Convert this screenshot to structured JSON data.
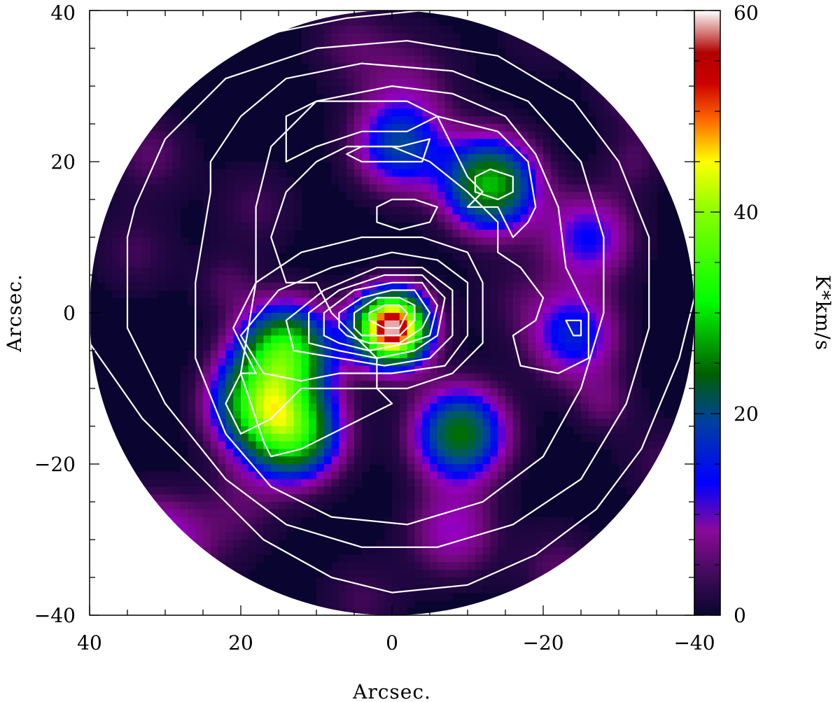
{
  "chart_data": {
    "type": "heatmap",
    "title": "",
    "xlabel": "Arcsec.",
    "ylabel": "Arcsec.",
    "xlim": [
      40,
      -40
    ],
    "ylim": [
      -40,
      40
    ],
    "x_ticks": [
      40,
      20,
      0,
      -20,
      -40
    ],
    "y_ticks": [
      40,
      20,
      0,
      -20,
      -40
    ],
    "x_tick_labels": [
      "40",
      "20",
      "0",
      "−20",
      "−40"
    ],
    "y_tick_labels": [
      "40",
      "20",
      "0",
      "−20",
      "−40"
    ],
    "colorbar": {
      "label": "K*km/s",
      "range": [
        0,
        60
      ],
      "ticks": [
        0,
        20,
        40,
        60
      ],
      "tick_labels": [
        "0",
        "20",
        "40",
        "60"
      ],
      "colors": [
        "#0a0530",
        "#3a0a55",
        "#8a0a9a",
        "#0000ff",
        "#00ff00",
        "#ffff00",
        "#cc0000",
        "#ffffff"
      ]
    },
    "map_radius": 40,
    "peaks": [
      {
        "x": 0,
        "y": -2,
        "value": 60
      },
      {
        "x": 14,
        "y": -5,
        "value": 32
      },
      {
        "x": 13,
        "y": -16,
        "value": 30
      },
      {
        "x": 18,
        "y": -12,
        "value": 26
      },
      {
        "x": -13,
        "y": 17,
        "value": 28
      },
      {
        "x": -9,
        "y": -16,
        "value": 24
      },
      {
        "x": -1,
        "y": 22,
        "value": 16
      },
      {
        "x": -24,
        "y": -3,
        "value": 14
      },
      {
        "x": -26,
        "y": 10,
        "value": 12
      },
      {
        "x": -34,
        "y": 31,
        "value": 10
      },
      {
        "x": 32,
        "y": -30,
        "value": 9
      },
      {
        "x": -8,
        "y": -29,
        "value": 9
      }
    ],
    "contours": [
      {
        "level": 1,
        "points": [
          [
            40,
            -4
          ],
          [
            33,
            -14
          ],
          [
            25,
            -22
          ],
          [
            17,
            -30
          ],
          [
            8,
            -35
          ],
          [
            0,
            -37
          ],
          [
            -10,
            -36
          ],
          [
            -19,
            -32
          ],
          [
            -27,
            -26
          ],
          [
            -33,
            -18
          ],
          [
            -38,
            -6
          ],
          [
            -40,
            2
          ],
          [
            -40,
            10
          ],
          [
            -37,
            22
          ],
          [
            -32,
            30
          ],
          [
            -24,
            36
          ],
          [
            -14,
            39
          ],
          [
            -4,
            40
          ],
          [
            6,
            39
          ],
          [
            16,
            37
          ],
          [
            26,
            32
          ],
          [
            34,
            23
          ],
          [
            38,
            14
          ],
          [
            40,
            8
          ]
        ]
      },
      {
        "level": 2,
        "points": [
          [
            35,
            10
          ],
          [
            35,
            -2
          ],
          [
            30,
            -12
          ],
          [
            22,
            -22
          ],
          [
            14,
            -28
          ],
          [
            4,
            -31
          ],
          [
            -6,
            -31
          ],
          [
            -16,
            -28
          ],
          [
            -25,
            -22
          ],
          [
            -31,
            -12
          ],
          [
            -34,
            -2
          ],
          [
            -34,
            10
          ],
          [
            -30,
            20
          ],
          [
            -24,
            28
          ],
          [
            -14,
            34
          ],
          [
            -2,
            36
          ],
          [
            10,
            35
          ],
          [
            22,
            31
          ],
          [
            30,
            23
          ],
          [
            34,
            14
          ]
        ]
      },
      {
        "level": 3,
        "points": [
          [
            24,
            16
          ],
          [
            26,
            4
          ],
          [
            26,
            -6
          ],
          [
            22,
            -16
          ],
          [
            16,
            -23
          ],
          [
            8,
            -27
          ],
          [
            -2,
            -28
          ],
          [
            -12,
            -25
          ],
          [
            -20,
            -19
          ],
          [
            -25,
            -10
          ],
          [
            -28,
            0
          ],
          [
            -28,
            10
          ],
          [
            -25,
            20
          ],
          [
            -18,
            28
          ],
          [
            -8,
            32
          ],
          [
            4,
            33
          ],
          [
            14,
            31
          ],
          [
            20,
            26
          ],
          [
            24,
            20
          ]
        ]
      },
      {
        "level": 4,
        "points": [
          [
            17,
            -17
          ],
          [
            20,
            -8
          ],
          [
            18,
            4
          ],
          [
            18,
            14
          ],
          [
            16,
            22
          ],
          [
            10,
            28
          ],
          [
            0,
            30
          ],
          [
            -8,
            29
          ],
          [
            -15,
            26
          ],
          [
            -19,
            21
          ],
          [
            -22,
            14
          ],
          [
            -23,
            6
          ],
          [
            -26,
            0
          ],
          [
            -26,
            -6
          ],
          [
            -22,
            -8
          ],
          [
            -17,
            -7
          ],
          [
            -16,
            -3
          ],
          [
            -19,
            -1
          ],
          [
            -20,
            2
          ],
          [
            -17,
            6
          ],
          [
            -14,
            8
          ],
          [
            -14,
            12
          ],
          [
            -10,
            16
          ],
          [
            -5,
            20
          ],
          [
            0,
            22
          ],
          [
            6,
            22
          ],
          [
            10,
            20
          ],
          [
            14,
            16
          ],
          [
            16,
            10
          ],
          [
            14,
            4
          ],
          [
            10,
            4
          ],
          [
            8,
            0
          ],
          [
            6,
            -2
          ],
          [
            2,
            -6
          ],
          [
            2,
            -10
          ],
          [
            0,
            -12
          ],
          [
            4,
            -14
          ],
          [
            8,
            -16
          ],
          [
            12,
            -18
          ],
          [
            16,
            -19
          ]
        ]
      },
      {
        "level": 5,
        "points": [
          [
            14,
            20
          ],
          [
            14,
            26
          ],
          [
            10,
            28
          ],
          [
            4,
            28
          ],
          [
            -2,
            28
          ],
          [
            -6,
            26
          ],
          [
            -8,
            22
          ],
          [
            -10,
            18
          ],
          [
            -12,
            16
          ],
          [
            -10,
            14
          ],
          [
            -14,
            14
          ],
          [
            -16,
            10
          ],
          [
            -18,
            12
          ],
          [
            -19,
            14
          ],
          [
            -18,
            20
          ],
          [
            -14,
            24
          ],
          [
            -6,
            26
          ],
          [
            -2,
            24
          ],
          [
            4,
            24
          ],
          [
            10,
            22
          ],
          [
            14,
            20
          ]
        ]
      },
      {
        "level": 6,
        "points": [
          [
            6,
            21
          ],
          [
            4,
            22
          ],
          [
            2,
            22
          ],
          [
            -1,
            22
          ],
          [
            -5,
            23
          ],
          [
            -4,
            20
          ],
          [
            0,
            20
          ],
          [
            4,
            20
          ],
          [
            6,
            21
          ]
        ]
      },
      {
        "level": 6,
        "points": [
          [
            -13,
            19
          ],
          [
            -16,
            18
          ],
          [
            -16,
            16
          ],
          [
            -14,
            15
          ],
          [
            -11,
            16
          ],
          [
            -11,
            18
          ],
          [
            -13,
            19
          ]
        ]
      },
      {
        "level": 6,
        "points": [
          [
            2,
            14
          ],
          [
            0,
            15
          ],
          [
            -3,
            15
          ],
          [
            -6,
            14
          ],
          [
            -5,
            12
          ],
          [
            -1,
            11
          ],
          [
            2,
            12
          ],
          [
            2,
            14
          ]
        ]
      },
      {
        "level": 6,
        "points": [
          [
            -23,
            -1
          ],
          [
            -25,
            -1
          ],
          [
            -25,
            -3
          ],
          [
            -24,
            -3
          ],
          [
            -23,
            -1
          ]
        ]
      },
      {
        "level": 7,
        "points": [
          [
            18,
            -8
          ],
          [
            21,
            -2
          ],
          [
            18,
            4
          ],
          [
            12,
            8
          ],
          [
            4,
            10
          ],
          [
            -4,
            10
          ],
          [
            -10,
            8
          ],
          [
            -12,
            4
          ],
          [
            -12,
            -4
          ],
          [
            -8,
            -8
          ],
          [
            -2,
            -10
          ],
          [
            6,
            -10
          ],
          [
            12,
            -10
          ],
          [
            16,
            -14
          ],
          [
            20,
            -16
          ],
          [
            22,
            -12
          ],
          [
            20,
            -8
          ]
        ]
      },
      {
        "level": 8,
        "points": [
          [
            17,
            -8
          ],
          [
            20,
            -3
          ],
          [
            15,
            3
          ],
          [
            8,
            6
          ],
          [
            0,
            8
          ],
          [
            -6,
            7
          ],
          [
            -10,
            4
          ],
          [
            -10,
            -3
          ],
          [
            -7,
            -7
          ],
          [
            0,
            -8
          ],
          [
            7,
            -8
          ],
          [
            12,
            -9
          ],
          [
            17,
            -8
          ]
        ]
      },
      {
        "level": 9,
        "points": [
          [
            13,
            -5
          ],
          [
            14,
            -1
          ],
          [
            9,
            3
          ],
          [
            2,
            6
          ],
          [
            -4,
            6
          ],
          [
            -8,
            3
          ],
          [
            -8,
            -3
          ],
          [
            -5,
            -6
          ],
          [
            1,
            -7
          ],
          [
            7,
            -6
          ],
          [
            13,
            -5
          ]
        ]
      },
      {
        "level": 10,
        "points": [
          [
            11,
            -4
          ],
          [
            11,
            0
          ],
          [
            7,
            3
          ],
          [
            1,
            5
          ],
          [
            -4,
            5
          ],
          [
            -7,
            2
          ],
          [
            -6,
            -3
          ],
          [
            -3,
            -5
          ],
          [
            2,
            -6
          ],
          [
            7,
            -5
          ],
          [
            11,
            -4
          ]
        ]
      },
      {
        "level": 11,
        "points": [
          [
            9,
            -3
          ],
          [
            9,
            0
          ],
          [
            5,
            3
          ],
          [
            0,
            4
          ],
          [
            -4,
            4
          ],
          [
            -6,
            1
          ],
          [
            -5,
            -3
          ],
          [
            -2,
            -4
          ],
          [
            3,
            -5
          ],
          [
            7,
            -4
          ],
          [
            9,
            -3
          ]
        ]
      },
      {
        "level": 12,
        "points": [
          [
            7,
            -2
          ],
          [
            7,
            0
          ],
          [
            4,
            2
          ],
          [
            0,
            3
          ],
          [
            -3,
            3
          ],
          [
            -5,
            0
          ],
          [
            -4,
            -2
          ],
          [
            -1,
            -4
          ],
          [
            3,
            -4
          ],
          [
            6,
            -3
          ],
          [
            7,
            -2
          ]
        ]
      },
      {
        "level": 13,
        "points": [
          [
            5,
            -2
          ],
          [
            5,
            0
          ],
          [
            2,
            2
          ],
          [
            -1,
            2
          ],
          [
            -3,
            1
          ],
          [
            -3,
            -1
          ],
          [
            -1,
            -3
          ],
          [
            2,
            -3
          ],
          [
            4,
            -3
          ],
          [
            5,
            -2
          ]
        ]
      },
      {
        "level": 14,
        "points": [
          [
            3,
            -1
          ],
          [
            3,
            0
          ],
          [
            1,
            1
          ],
          [
            -1,
            1
          ],
          [
            -2,
            0
          ],
          [
            -1,
            -2
          ],
          [
            1,
            -2
          ],
          [
            3,
            -1
          ]
        ]
      }
    ]
  }
}
